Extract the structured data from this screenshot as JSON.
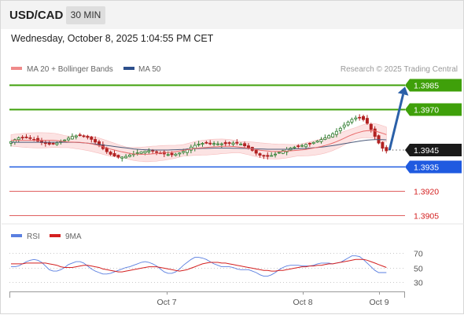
{
  "header": {
    "pair": "USD/CAD",
    "timeframe": "30 MIN",
    "timestamp": "Wednesday, October 8, 2025 1:04:55 PM CET"
  },
  "legend": {
    "ma20": "MA 20 + Bollinger Bands",
    "ma50": "MA 50",
    "credit": "Research © 2025 Trading Central",
    "rsi": "RSI",
    "rsi_ma": "9MA"
  },
  "colors": {
    "candle_up": "#2f7d2f",
    "candle_down": "#b22222",
    "ma20": "#e86a6a",
    "ma50": "#4b5a7a",
    "bollinger": "#fbdada",
    "resistance": "#3fa00a",
    "pivot": "#1f5ae0",
    "support": "#e06060",
    "arrow": "#2b60a8",
    "price_box": "#1a1a1a",
    "rsi": "#5a7fe0",
    "rsi_ma": "#d42020"
  },
  "chart_data": [
    {
      "type": "candlestick",
      "title": "USD/CAD 30 MIN",
      "x_labels": [
        "Oct 7",
        "Oct 8",
        "Oct 9"
      ],
      "ylim": [
        1.39,
        1.399
      ],
      "current_price": 1.3945,
      "levels": [
        {
          "label": "1.3985",
          "value": 1.3985,
          "kind": "resistance",
          "color": "#3fa00a"
        },
        {
          "label": "1.3970",
          "value": 1.397,
          "kind": "resistance",
          "color": "#3fa00a"
        },
        {
          "label": "1.3935",
          "value": 1.3935,
          "kind": "pivot",
          "color": "#1f5ae0"
        },
        {
          "label": "1.3920",
          "value": 1.392,
          "kind": "support",
          "color": "#e06060"
        },
        {
          "label": "1.3905",
          "value": 1.3905,
          "kind": "support",
          "color": "#e06060"
        }
      ],
      "arrow": {
        "from": 1.3945,
        "to": 1.3985,
        "direction": "up"
      },
      "closes": [
        1.39502,
        1.39514,
        1.39525,
        1.39528,
        1.39528,
        1.39523,
        1.39515,
        1.39505,
        1.39496,
        1.3949,
        1.39486,
        1.39487,
        1.39493,
        1.39502,
        1.39512,
        1.39523,
        1.39533,
        1.39537,
        1.39539,
        1.39536,
        1.39528,
        1.39516,
        1.39499,
        1.3948,
        1.39459,
        1.3944,
        1.39424,
        1.39413,
        1.39406,
        1.39407,
        1.39411,
        1.39419,
        1.39426,
        1.39433,
        1.39439,
        1.39443,
        1.39445,
        1.39444,
        1.39438,
        1.39431,
        1.39426,
        1.39422,
        1.39421,
        1.39425,
        1.39432,
        1.39442,
        1.39455,
        1.39468,
        1.39479,
        1.39487,
        1.39491,
        1.39494,
        1.39492,
        1.3949,
        1.39488,
        1.39488,
        1.39489,
        1.39491,
        1.39493,
        1.39492,
        1.39487,
        1.39476,
        1.39463,
        1.39448,
        1.39431,
        1.39418,
        1.39412,
        1.39411,
        1.39416,
        1.39425,
        1.39436,
        1.39446,
        1.39455,
        1.39463,
        1.39468,
        1.39473,
        1.39478,
        1.39484,
        1.3949,
        1.39497,
        1.39506,
        1.39515,
        1.39525,
        1.39538,
        1.3955,
        1.39565,
        1.39584,
        1.39604,
        1.39622,
        1.39638,
        1.39648,
        1.39649,
        1.39638,
        1.39615,
        1.39577,
        1.39534,
        1.39493,
        1.39461,
        1.39445
      ],
      "ma20": [
        1.3951,
        1.3951,
        1.3951,
        1.3951,
        1.3951,
        1.3951,
        1.3951,
        1.3951,
        1.3951,
        1.3951,
        1.3951,
        1.3951,
        1.39508,
        1.39505,
        1.39502,
        1.395,
        1.39499,
        1.39498,
        1.39497,
        1.39495,
        1.39492,
        1.39488,
        1.39483,
        1.39477,
        1.3947,
        1.39463,
        1.39456,
        1.3945,
        1.39444,
        1.39439,
        1.39434,
        1.39429,
        1.39426,
        1.39425,
        1.39424,
        1.39424,
        1.39425,
        1.39427,
        1.39428,
        1.39431,
        1.39433,
        1.39435,
        1.39437,
        1.3944,
        1.39444,
        1.39448,
        1.39452,
        1.39456,
        1.3946,
        1.39462,
        1.39464,
        1.39466,
        1.39468,
        1.3947,
        1.39471,
        1.39473,
        1.39473,
        1.39473,
        1.39472,
        1.3947,
        1.39467,
        1.39464,
        1.39461,
        1.39457,
        1.39453,
        1.39449,
        1.39446,
        1.39444,
        1.39442,
        1.39441,
        1.39441,
        1.39442,
        1.39443,
        1.39445,
        1.39447,
        1.39449,
        1.39451,
        1.39454,
        1.39458,
        1.39462,
        1.39467,
        1.39472,
        1.39478,
        1.39485,
        1.39493,
        1.39502,
        1.39512,
        1.39523,
        1.39534,
        1.39544,
        1.39553,
        1.3956,
        1.39566,
        1.39569,
        1.3957,
        1.39567,
        1.39561,
        1.39553,
        1.39545
      ],
      "ma50": [
        1.39498,
        1.39498,
        1.39498,
        1.39498,
        1.39498,
        1.39498,
        1.39498,
        1.39498,
        1.39498,
        1.39498,
        1.39498,
        1.39498,
        1.39498,
        1.39498,
        1.39498,
        1.39498,
        1.39498,
        1.39497,
        1.39496,
        1.39494,
        1.39492,
        1.3949,
        1.39487,
        1.39484,
        1.39481,
        1.39478,
        1.39475,
        1.39472,
        1.39469,
        1.39466,
        1.39463,
        1.3946,
        1.39457,
        1.39455,
        1.39453,
        1.39452,
        1.39451,
        1.3945,
        1.3945,
        1.3945,
        1.3945,
        1.3945,
        1.39451,
        1.39452,
        1.39453,
        1.39454,
        1.39456,
        1.39457,
        1.39458,
        1.39459,
        1.3946,
        1.3946,
        1.39461,
        1.39462,
        1.39462,
        1.39462,
        1.39462,
        1.39462,
        1.39461,
        1.39461,
        1.3946,
        1.3946,
        1.39459,
        1.39458,
        1.39457,
        1.39457,
        1.39456,
        1.39455,
        1.39455,
        1.39455,
        1.39455,
        1.39455,
        1.39455,
        1.39456,
        1.39457,
        1.39458,
        1.39459,
        1.3946,
        1.39462,
        1.39464,
        1.39466,
        1.39468,
        1.39471,
        1.39474,
        1.39477,
        1.39481,
        1.39485,
        1.39489,
        1.39493,
        1.39497,
        1.39501,
        1.39505,
        1.39508,
        1.39511,
        1.39513,
        1.39514,
        1.39514,
        1.39514,
        1.39513
      ]
    },
    {
      "type": "line",
      "title": "RSI",
      "y_ticks": [
        70,
        50,
        30
      ],
      "ylim": [
        20,
        80
      ],
      "series": [
        {
          "name": "RSI",
          "values": [
            51,
            51,
            52,
            55,
            58,
            60,
            61,
            60,
            57,
            52,
            47,
            45,
            45,
            47,
            50,
            54,
            56,
            58,
            58,
            56,
            52,
            48,
            45,
            43,
            41,
            41,
            42,
            44,
            46,
            48,
            50,
            51,
            53,
            55,
            57,
            58,
            57,
            55,
            52,
            48,
            44,
            42,
            42,
            44,
            48,
            53,
            57,
            61,
            64,
            64,
            63,
            61,
            58,
            55,
            53,
            51,
            51,
            51,
            50,
            48,
            47,
            47,
            47,
            45,
            43,
            40,
            38,
            38,
            40,
            43,
            47,
            50,
            52,
            53,
            53,
            53,
            52,
            52,
            52,
            53,
            55,
            56,
            56,
            56,
            55,
            56,
            57,
            60,
            63,
            66,
            66,
            65,
            61,
            56,
            51,
            46,
            43,
            43,
            43
          ]
        },
        {
          "name": "9MA",
          "values": [
            55,
            55,
            55,
            55,
            56,
            56,
            56,
            56,
            56,
            56,
            55,
            54,
            53,
            51,
            50,
            50,
            50,
            51,
            52,
            53,
            53,
            52,
            51,
            50,
            48,
            47,
            46,
            45,
            44,
            44,
            45,
            46,
            47,
            48,
            49,
            50,
            51,
            51,
            51,
            50,
            49,
            48,
            47,
            46,
            45,
            46,
            47,
            49,
            51,
            53,
            55,
            56,
            57,
            57,
            57,
            56,
            56,
            55,
            54,
            53,
            52,
            51,
            50,
            49,
            48,
            47,
            46,
            46,
            45,
            45,
            46,
            46,
            47,
            48,
            49,
            50,
            51,
            51,
            52,
            52,
            53,
            53,
            54,
            55,
            55,
            56,
            57,
            58,
            59,
            60,
            61,
            61,
            61,
            60,
            58,
            56,
            54,
            52,
            50
          ]
        }
      ]
    }
  ]
}
